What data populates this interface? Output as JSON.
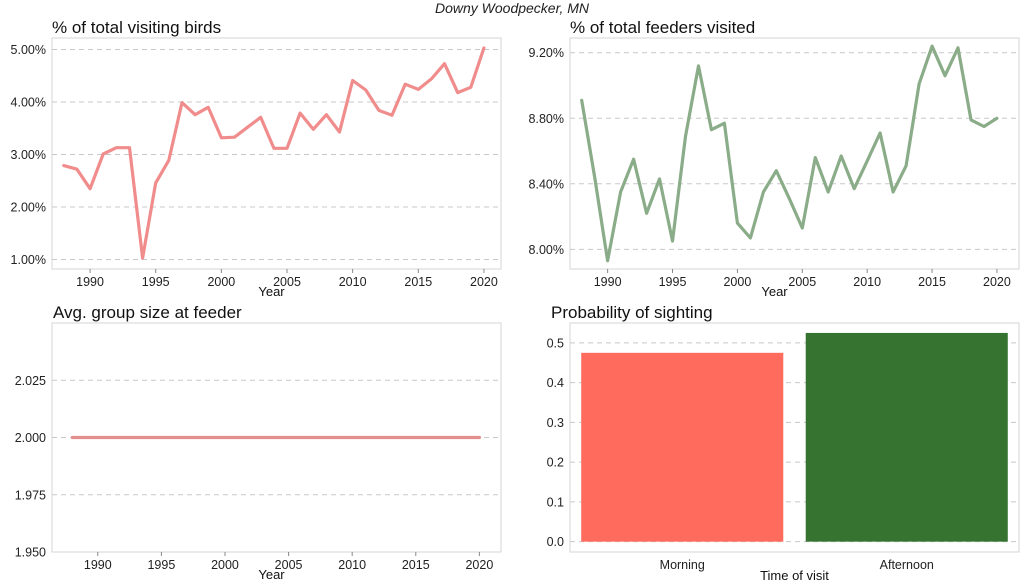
{
  "suptitle": "Downy Woodpecker, MN",
  "chart_data": [
    {
      "type": "line",
      "title": "% of total visiting birds",
      "xlabel": "Year",
      "ylabel": "",
      "color": "#f08c8c",
      "x": [
        1988,
        1989,
        1990,
        1991,
        1992,
        1993,
        1994,
        1995,
        1996,
        1997,
        1998,
        1999,
        2000,
        2001,
        2002,
        2003,
        2004,
        2005,
        2006,
        2007,
        2008,
        2009,
        2010,
        2011,
        2012,
        2013,
        2014,
        2015,
        2016,
        2017,
        2018,
        2019,
        2020
      ],
      "y": [
        2.79,
        2.72,
        2.35,
        3.01,
        3.13,
        3.13,
        1.03,
        2.46,
        2.89,
        3.99,
        3.76,
        3.9,
        3.32,
        3.33,
        3.52,
        3.71,
        3.12,
        3.12,
        3.79,
        3.48,
        3.76,
        3.43,
        4.41,
        4.23,
        3.84,
        3.75,
        4.34,
        4.24,
        4.44,
        4.73,
        4.18,
        4.28,
        5.03
      ],
      "xticks": [
        1990,
        1995,
        2000,
        2005,
        2010,
        2015,
        2020
      ],
      "yticks": [
        1.0,
        2.0,
        3.0,
        4.0,
        5.0
      ],
      "ytick_labels": [
        "1.00%",
        "2.00%",
        "3.00%",
        "4.00%",
        "5.00%"
      ],
      "xlim": [
        1987.1,
        2021.3
      ],
      "ylim": [
        0.82,
        5.22
      ],
      "grid": "horizontal dashed"
    },
    {
      "type": "line",
      "title": "% of total feeders visited",
      "xlabel": "Year",
      "ylabel": "",
      "color": "#8aac88",
      "x": [
        1988,
        1989,
        1990,
        1991,
        1992,
        1993,
        1994,
        1995,
        1996,
        1997,
        1998,
        1999,
        2000,
        2001,
        2002,
        2003,
        2004,
        2005,
        2006,
        2007,
        2008,
        2009,
        2010,
        2011,
        2012,
        2013,
        2014,
        2015,
        2016,
        2017,
        2018,
        2019,
        2020
      ],
      "y": [
        8.91,
        8.44,
        7.93,
        8.35,
        8.55,
        8.22,
        8.43,
        8.05,
        8.69,
        9.12,
        8.73,
        8.77,
        8.16,
        8.07,
        8.35,
        8.48,
        8.31,
        8.13,
        8.56,
        8.35,
        8.57,
        8.37,
        8.54,
        8.71,
        8.35,
        8.51,
        9.01,
        9.24,
        9.06,
        9.23,
        8.79,
        8.75,
        8.8
      ],
      "xticks": [
        1990,
        1995,
        2000,
        2005,
        2010,
        2015,
        2020
      ],
      "yticks": [
        8.0,
        8.4,
        8.8,
        9.2
      ],
      "ytick_labels": [
        "8.00%",
        "8.40%",
        "8.80%",
        "9.20%"
      ],
      "xlim": [
        1987.1,
        2021.7
      ],
      "ylim": [
        7.88,
        9.29
      ],
      "grid": "horizontal dashed"
    },
    {
      "type": "line",
      "title": "Avg. group size at feeder",
      "xlabel": "Year",
      "ylabel": "",
      "color": "#e38f8f",
      "x": [
        1988,
        2020
      ],
      "y": [
        2.0,
        2.0
      ],
      "xticks": [
        1990,
        1995,
        2000,
        2005,
        2010,
        2015,
        2020
      ],
      "yticks": [
        1.95,
        1.975,
        2.0,
        2.025
      ],
      "ytick_labels": [
        "1.950",
        "1.975",
        "2.000",
        "2.025"
      ],
      "xlim": [
        1986.4,
        2021.7
      ],
      "ylim": [
        1.95,
        2.05
      ],
      "grid": "horizontal dashed"
    },
    {
      "type": "bar",
      "title": "Probability of sighting",
      "xlabel": "Time of visit",
      "ylabel": "",
      "categories": [
        "Morning",
        "Afternoon"
      ],
      "values": [
        0.475,
        0.525
      ],
      "colors": [
        "#ff6b5c",
        "#367331"
      ],
      "yticks": [
        0.0,
        0.1,
        0.2,
        0.3,
        0.4,
        0.5
      ],
      "ytick_labels": [
        "0.0",
        "0.1",
        "0.2",
        "0.3",
        "0.4",
        "0.5"
      ],
      "ylim": [
        -0.026,
        0.55
      ],
      "grid": "horizontal dashed"
    }
  ]
}
